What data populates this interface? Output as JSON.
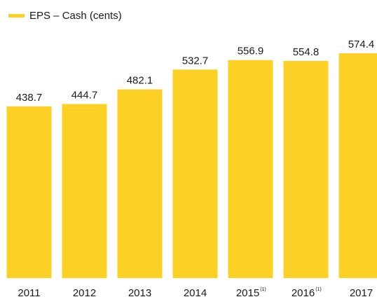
{
  "chart_data": {
    "type": "bar",
    "legend": "EPS – Cash (cents)",
    "categories": [
      "2011",
      "2012",
      "2013",
      "2014",
      "2015",
      "2016",
      "2017"
    ],
    "category_notes": [
      null,
      null,
      null,
      null,
      "(1)",
      "(1)",
      null
    ],
    "values": [
      438.7,
      444.7,
      482.1,
      532.7,
      556.9,
      554.8,
      574.4
    ],
    "color": "#fcd024"
  }
}
